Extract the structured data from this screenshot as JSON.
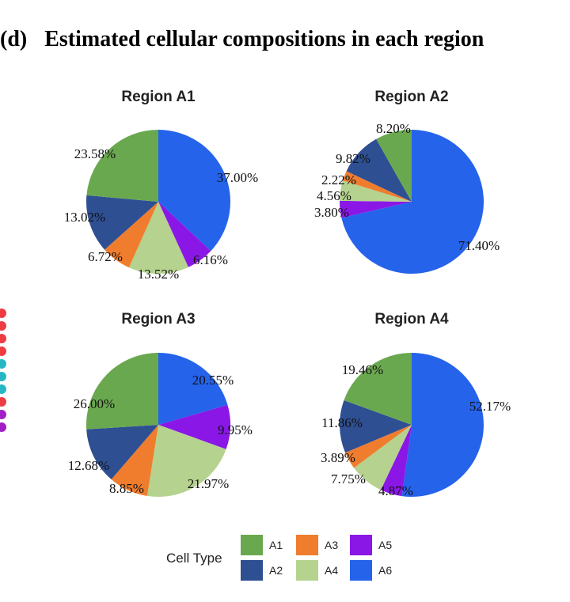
{
  "figure": {
    "panel_tag": "(d)",
    "panel_title": "Estimated cellular compositions in each region"
  },
  "colors": {
    "A1": "#6aa84f",
    "A2": "#2f4f93",
    "A3": "#ef7d2d",
    "A4": "#b5d28f",
    "A5": "#8a17e6",
    "A6": "#2563eb",
    "edge_dots": [
      "#ef3b42",
      "#ef3b42",
      "#ef3b42",
      "#ef3b42",
      "#25b8c4",
      "#25b8c4",
      "#25b8c4",
      "#ef3b42",
      "#a21ec7",
      "#a21ec7"
    ]
  },
  "chart_data": [
    {
      "type": "pie",
      "title": "Region A1",
      "labels": [
        "A6",
        "A5",
        "A4",
        "A3",
        "A2",
        "A1"
      ],
      "values": [
        37.0,
        6.16,
        13.52,
        6.72,
        13.02,
        23.58
      ],
      "value_labels": [
        "37.00%",
        "6.16%",
        "13.52%",
        "6.72%",
        "13.02%",
        "23.58%"
      ]
    },
    {
      "type": "pie",
      "title": "Region A2",
      "labels": [
        "A6",
        "A5",
        "A4",
        "A3",
        "A2",
        "A1"
      ],
      "values": [
        71.4,
        3.8,
        4.56,
        2.22,
        9.82,
        8.2
      ],
      "value_labels": [
        "71.40%",
        "3.80%",
        "4.56%",
        "2.22%",
        "9.82%",
        "8.20%"
      ]
    },
    {
      "type": "pie",
      "title": "Region A3",
      "labels": [
        "A6",
        "A5",
        "A4",
        "A3",
        "A2",
        "A1"
      ],
      "values": [
        20.55,
        9.95,
        21.97,
        8.85,
        12.68,
        26.0
      ],
      "value_labels": [
        "20.55%",
        "9.95%",
        "21.97%",
        "8.85%",
        "12.68%",
        "26.00%"
      ]
    },
    {
      "type": "pie",
      "title": "Region A4",
      "labels": [
        "A6",
        "A5",
        "A4",
        "A3",
        "A2",
        "A1"
      ],
      "values": [
        52.17,
        4.87,
        7.75,
        3.89,
        11.86,
        19.46
      ],
      "value_labels": [
        "52.17%",
        "4.87%",
        "7.75%",
        "3.89%",
        "11.86%",
        "19.46%"
      ]
    }
  ],
  "legend": {
    "title": "Cell Type",
    "items": [
      "A1",
      "A2",
      "A3",
      "A4",
      "A5",
      "A6"
    ]
  }
}
